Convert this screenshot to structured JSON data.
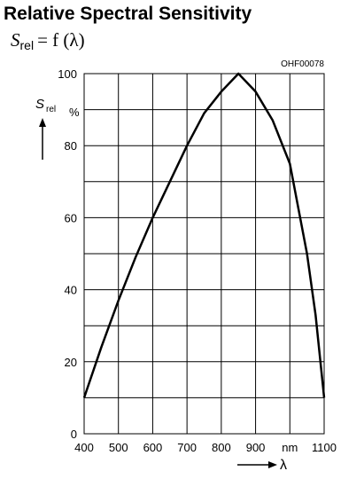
{
  "chart_data": {
    "type": "line",
    "title": "Relative Spectral Sensitivity",
    "subtitle": {
      "symbol": "S",
      "subscript": "rel",
      "rest": "= f (λ)"
    },
    "code": "OHF00078",
    "y_label": {
      "symbol": "S",
      "subscript": "rel",
      "unit": "%"
    },
    "x_label": "λ",
    "x": [
      400,
      450,
      500,
      550,
      600,
      650,
      700,
      750,
      800,
      850,
      900,
      950,
      1000,
      1050,
      1075,
      1100
    ],
    "series": [
      {
        "color": "#000000",
        "values": [
          10,
          24,
          37,
          49,
          60,
          70,
          80,
          89,
          95,
          100,
          95,
          87,
          75,
          50,
          33,
          10
        ]
      }
    ],
    "xlim": [
      400,
      1100
    ],
    "ylim": [
      0,
      100
    ],
    "xticks": [
      400,
      500,
      600,
      700,
      800,
      900,
      {
        "value": 1000,
        "label": "nm"
      },
      1100
    ],
    "yticks": [
      0,
      20,
      40,
      60,
      80,
      100
    ],
    "ygrid": [
      0,
      10,
      20,
      30,
      40,
      50,
      60,
      70,
      80,
      90,
      100
    ],
    "grid": true
  }
}
